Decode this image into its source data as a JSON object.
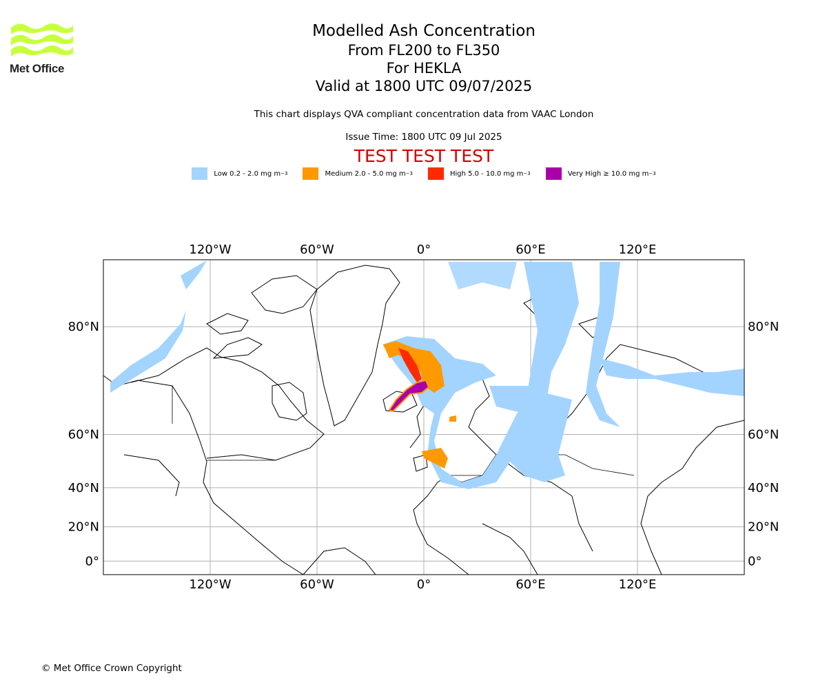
{
  "logo": {
    "name": "Met Office",
    "colors": {
      "waves": "#c8ff3c",
      "text": "#222222"
    }
  },
  "title": {
    "main": "Modelled Ash Concentration",
    "levels": "From FL200 to FL350",
    "volcano": "For HEKLA",
    "valid": "Valid at 1800 UTC 09/07/2025"
  },
  "subtitle": "This chart displays QVA compliant concentration data from VAAC London",
  "issue_time": "Issue Time: 1800 UTC 09 Jul 2025",
  "test_banner": "TEST TEST TEST",
  "legend": [
    {
      "label": "Low 0.2 - 2.0 mg m",
      "sup": "−3",
      "color": "#a3d4ff"
    },
    {
      "label": "Medium 2.0 - 5.0 mg m",
      "sup": "−3",
      "color": "#ff9900"
    },
    {
      "label": "High 5.0 - 10.0 mg m",
      "sup": "−3",
      "color": "#ff2a00"
    },
    {
      "label": "Very High  ≥  10.0 mg m",
      "sup": "−3",
      "color": "#aa00aa"
    }
  ],
  "map": {
    "projection": "Mercator",
    "lon_range": [
      -180,
      180
    ],
    "lat_range": [
      -8,
      85
    ],
    "lon_ticks": [
      {
        "value": -120,
        "label": "120°W"
      },
      {
        "value": -60,
        "label": "60°W"
      },
      {
        "value": 0,
        "label": "0°"
      },
      {
        "value": 60,
        "label": "60°E"
      },
      {
        "value": 120,
        "label": "120°E"
      }
    ],
    "lat_ticks": [
      {
        "value": 80,
        "label": "80°N"
      },
      {
        "value": 60,
        "label": "60°N"
      },
      {
        "value": 40,
        "label": "40°N"
      },
      {
        "value": 20,
        "label": "20°N"
      },
      {
        "value": 0,
        "label": "0°"
      }
    ],
    "grid": true,
    "grid_color": "#b0b0b0"
  },
  "copyright": "© Met Office Crown Copyright"
}
